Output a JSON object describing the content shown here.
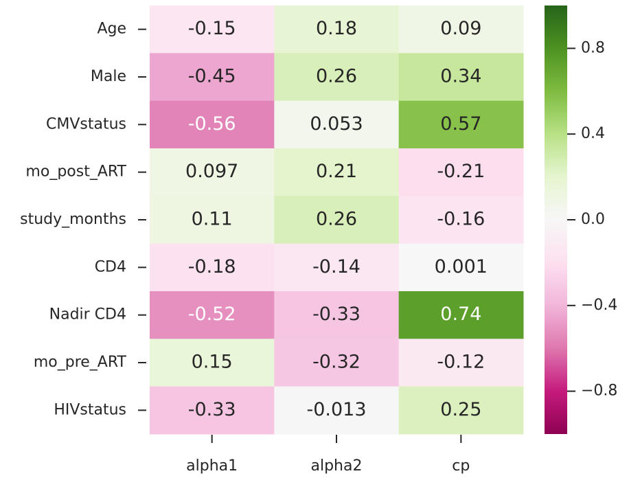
{
  "chart_data": {
    "type": "heatmap",
    "rows": [
      "Age",
      "Male",
      "CMVstatus",
      "mo_post_ART",
      "study_months",
      "CD4",
      "Nadir CD4",
      "mo_pre_ART",
      "HIVstatus"
    ],
    "columns": [
      "alpha1",
      "alpha2",
      "cp"
    ],
    "values": [
      [
        -0.15,
        0.18,
        0.09
      ],
      [
        -0.45,
        0.26,
        0.34
      ],
      [
        -0.56,
        0.053,
        0.57
      ],
      [
        0.097,
        0.21,
        -0.21
      ],
      [
        0.11,
        0.26,
        -0.16
      ],
      [
        -0.18,
        -0.14,
        0.001
      ],
      [
        -0.52,
        -0.33,
        0.74
      ],
      [
        0.15,
        -0.32,
        -0.12
      ],
      [
        -0.33,
        -0.013,
        0.25
      ]
    ],
    "colormap": "PiYG",
    "clim": [
      -1,
      1
    ],
    "cticks": [
      {
        "value": -0.8,
        "label": "−0.8"
      },
      {
        "value": -0.4,
        "label": "−0.4"
      },
      {
        "value": 0,
        "label": "0.0"
      },
      0.4,
      0.8
    ]
  }
}
